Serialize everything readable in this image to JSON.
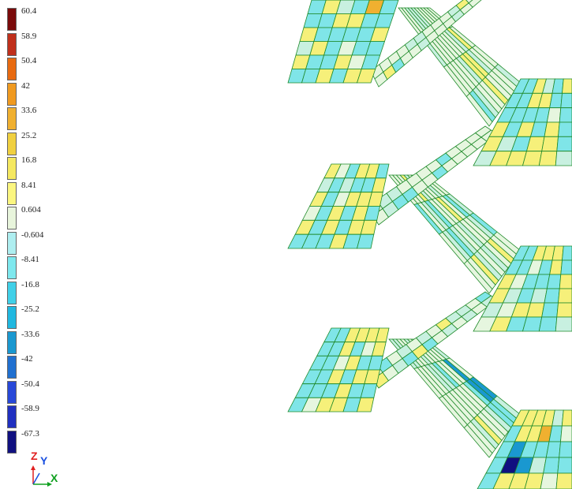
{
  "legend": {
    "labels": [
      "60.4",
      "58.9",
      "50.4",
      "42",
      "33.6",
      "25.2",
      "16.8",
      "8.41",
      "0.604",
      "-0.604",
      "-8.41",
      "-16.8",
      "-25.2",
      "-33.6",
      "-42",
      "-50.4",
      "-58.9",
      "-67.3"
    ],
    "colors": [
      "#7a0a0a",
      "#c0301c",
      "#e86a10",
      "#f09a20",
      "#f0b030",
      "#f0d040",
      "#f5e860",
      "#fbf680",
      "#e8f5dc",
      "#aeeef0",
      "#7ee8ee",
      "#40d0e8",
      "#20b8e0",
      "#1a98d0",
      "#2070d0",
      "#2848d8",
      "#2030c0",
      "#101080"
    ]
  },
  "axes": {
    "z_label": "Z",
    "y_label": "Y",
    "x_label": "X"
  },
  "palette": {
    "cyan": "#7fe5e8",
    "yellow": "#f6f07a",
    "light": "#e6f6df",
    "mint": "#c8f0e0",
    "orange": "#f0b030",
    "blue": "#1a98d0",
    "navy": "#101080",
    "edge": "#1f8a2a"
  }
}
